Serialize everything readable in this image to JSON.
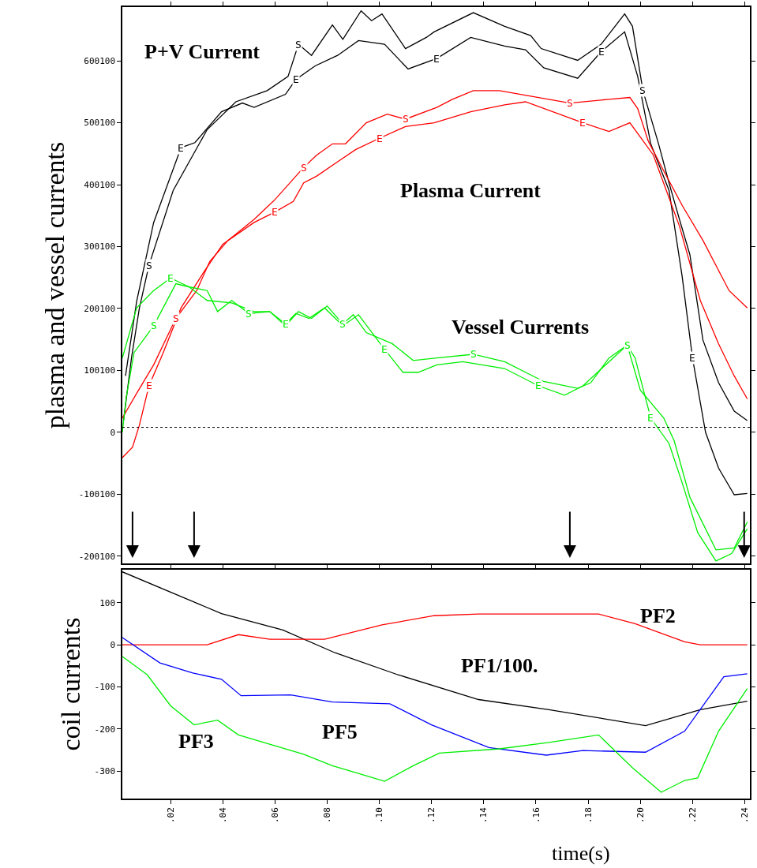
{
  "chart_data": [
    {
      "type": "line",
      "ylabel": "plasma and vessel currents",
      "xlim": [
        0.0015,
        0.242
      ],
      "ylim": [
        -212000,
        687000
      ],
      "xticks": [
        0.02,
        0.04,
        0.06,
        0.08,
        0.1,
        0.12,
        0.14,
        0.16,
        0.18,
        0.2,
        0.22,
        0.24
      ],
      "yticks": [
        600100,
        500100,
        400100,
        300100,
        200100,
        100100,
        0,
        -100100,
        -200100
      ],
      "tick_labels": "y",
      "grid": false,
      "marker": "none",
      "line_style": "solid",
      "ref_lines": [
        {
          "axis": "y",
          "value": 8000,
          "color": "#000000",
          "line_style": "dotted"
        },
        {
          "axis": "x",
          "value": 0.0054,
          "color": "#000000"
        },
        {
          "axis": "x",
          "value": 0.029,
          "color": "#000000"
        },
        {
          "axis": "x",
          "value": 0.173,
          "color": "#000000"
        },
        {
          "axis": "x",
          "value": 0.2398,
          "color": "#000000"
        }
      ],
      "annotations": [
        "P+V Current",
        "Plasma Current",
        "Vessel Currents"
      ],
      "series": [
        {
          "name": "S",
          "color": "#000000",
          "x": [
            0.002,
            0.005,
            0.008,
            0.0117,
            0.021,
            0.034,
            0.045,
            0.057,
            0.065,
            0.069,
            0.074,
            0.082,
            0.086,
            0.093,
            0.097,
            0.101,
            0.11,
            0.118,
            0.121,
            0.136,
            0.148,
            0.158,
            0.162,
            0.176,
            0.185,
            0.194,
            0.197,
            0.201,
            0.207,
            0.211,
            0.215,
            0.219,
            0.224,
            0.23,
            0.236,
            0.241
          ],
          "values": [
            20000,
            120000,
            200000,
            270000,
            391000,
            489000,
            534000,
            552000,
            575000,
            627000,
            609000,
            658000,
            635000,
            681000,
            665000,
            676000,
            620000,
            638000,
            647000,
            678000,
            656000,
            641000,
            620000,
            601000,
            627000,
            676000,
            656000,
            552000,
            466000,
            403000,
            344000,
            287000,
            149000,
            80000,
            34000,
            19000
          ]
        },
        {
          "name": "E",
          "color": "#000000",
          "x": [
            0.0027,
            0.007,
            0.0135,
            0.024,
            0.0293,
            0.0395,
            0.0475,
            0.052,
            0.064,
            0.068,
            0.0754,
            0.084,
            0.092,
            0.102,
            0.111,
            0.122,
            0.135,
            0.148,
            0.156,
            0.163,
            0.176,
            0.185,
            0.194,
            0.199,
            0.204,
            0.211,
            0.216,
            0.22,
            0.225,
            0.23,
            0.236,
            0.241
          ],
          "values": [
            91000,
            212000,
            339000,
            460000,
            468000,
            518000,
            532000,
            525000,
            546000,
            570000,
            592000,
            609000,
            633000,
            627000,
            587000,
            604000,
            638000,
            624000,
            618000,
            589000,
            572000,
            615000,
            647000,
            575000,
            466000,
            391000,
            253000,
            120000,
            0,
            -58000,
            -101000,
            -99000
          ]
        },
        {
          "name": "S",
          "color": "#ff0000",
          "x": [
            0.0015,
            0.007,
            0.0135,
            0.022,
            0.03,
            0.035,
            0.042,
            0.052,
            0.06,
            0.071,
            0.076,
            0.082,
            0.087,
            0.095,
            0.103,
            0.11,
            0.122,
            0.128,
            0.136,
            0.146,
            0.158,
            0.173,
            0.188,
            0.196,
            0.199,
            0.203,
            0.208,
            0.216,
            0.224,
            0.234,
            0.241
          ],
          "values": [
            23000,
            63000,
            109000,
            184000,
            229000,
            276000,
            310000,
            344000,
            376000,
            428000,
            448000,
            466000,
            466000,
            500000,
            514000,
            506000,
            525000,
            538000,
            552000,
            552000,
            543000,
            532000,
            538000,
            541000,
            523000,
            471000,
            430000,
            367000,
            310000,
            229000,
            201000
          ]
        },
        {
          "name": "E",
          "color": "#ff0000",
          "x": [
            0.0015,
            0.0054,
            0.008,
            0.0117,
            0.017,
            0.024,
            0.0326,
            0.04,
            0.052,
            0.06,
            0.067,
            0.071,
            0.076,
            0.084,
            0.091,
            0.1,
            0.11,
            0.121,
            0.135,
            0.148,
            0.156,
            0.178,
            0.188,
            0.196,
            0.2,
            0.205,
            0.215,
            0.223,
            0.23,
            0.236,
            0.241
          ],
          "values": [
            -41000,
            -24000,
            11000,
            75000,
            127000,
            201000,
            258000,
            304000,
            339000,
            356000,
            373000,
            403000,
            414000,
            437000,
            457000,
            475000,
            494000,
            500000,
            518000,
            529000,
            534000,
            500000,
            486000,
            500000,
            477000,
            448000,
            333000,
            213000,
            143000,
            91000,
            54000
          ]
        },
        {
          "name": "S",
          "color": "#00ee00",
          "x": [
            0.0015,
            0.003,
            0.006,
            0.0135,
            0.022,
            0.027,
            0.034,
            0.038,
            0.0434,
            0.05,
            0.058,
            0.064,
            0.069,
            0.074,
            0.08,
            0.086,
            0.09,
            0.095,
            0.105,
            0.113,
            0.122,
            0.136,
            0.148,
            0.163,
            0.176,
            0.181,
            0.188,
            0.195,
            0.2,
            0.209,
            0.213,
            0.219,
            0.229,
            0.236,
            0.241
          ],
          "values": [
            0,
            57000,
            129000,
            172000,
            240000,
            235000,
            229000,
            195000,
            213000,
            192000,
            195000,
            172000,
            195000,
            184000,
            204000,
            175000,
            190000,
            161000,
            143000,
            116000,
            120000,
            126000,
            114000,
            82000,
            71000,
            80000,
            120000,
            141000,
            68000,
            23000,
            -14000,
            -105000,
            -190000,
            -187000,
            -145000
          ]
        },
        {
          "name": "E",
          "color": "#00ee00",
          "x": [
            0.0015,
            0.007,
            0.0135,
            0.02,
            0.027,
            0.034,
            0.0434,
            0.052,
            0.058,
            0.064,
            0.068,
            0.073,
            0.079,
            0.086,
            0.092,
            0.102,
            0.109,
            0.115,
            0.122,
            0.132,
            0.148,
            0.161,
            0.171,
            0.178,
            0.188,
            0.195,
            0.198,
            0.204,
            0.211,
            0.216,
            0.222,
            0.229,
            0.235,
            0.241
          ],
          "values": [
            120000,
            201000,
            229000,
            249000,
            235000,
            213000,
            209000,
            195000,
            195000,
            175000,
            192000,
            184000,
            201000,
            172000,
            190000,
            134000,
            97000,
            97000,
            109000,
            114000,
            103000,
            75000,
            60000,
            75000,
            114000,
            141000,
            120000,
            23000,
            -18000,
            -81000,
            -162000,
            -208000,
            -196000,
            -156000
          ]
        }
      ]
    },
    {
      "type": "line",
      "ylabel": "coil currents",
      "xlabel": "time(s)",
      "xlim": [
        0.0015,
        0.242
      ],
      "ylim": [
        -365,
        178
      ],
      "xticks": [
        {
          "value": 0.02,
          "label": ".02"
        },
        {
          "value": 0.04,
          "label": ".04"
        },
        {
          "value": 0.06,
          "label": ".06"
        },
        {
          "value": 0.08,
          "label": ".08"
        },
        {
          "value": 0.1,
          "label": ".10"
        },
        {
          "value": 0.12,
          "label": ".12"
        },
        {
          "value": 0.14,
          "label": ".14"
        },
        {
          "value": 0.16,
          "label": ".16"
        },
        {
          "value": 0.18,
          "label": ".18"
        },
        {
          "value": 0.2,
          "label": ".20"
        },
        {
          "value": 0.22,
          "label": ".22"
        },
        {
          "value": 0.24,
          "label": ".24"
        }
      ],
      "yticks": [
        100,
        0,
        -100,
        -200,
        -300
      ],
      "grid": false,
      "marker": "none",
      "line_style": "solid",
      "annotations": [
        "PF2",
        "PF1/100.",
        "PF5",
        "PF3"
      ],
      "series": [
        {
          "color": "#000000",
          "x": [
            0.0015,
            0.0395,
            0.063,
            0.083,
            0.107,
            0.138,
            0.165,
            0.202,
            0.223,
            0.241
          ],
          "values": [
            173,
            74,
            35,
            -19,
            -71,
            -130,
            -154,
            -192,
            -154,
            -134
          ]
        },
        {
          "color": "#ff0000",
          "x": [
            0.0015,
            0.034,
            0.046,
            0.058,
            0.079,
            0.101,
            0.121,
            0.138,
            0.184,
            0.198,
            0.217,
            0.223,
            0.241
          ],
          "values": [
            0,
            0,
            24,
            13,
            13,
            47,
            69,
            73,
            73,
            50,
            7,
            0,
            0
          ]
        },
        {
          "color": "#0000ff",
          "x": [
            0.0015,
            0.0159,
            0.0285,
            0.0395,
            0.047,
            0.066,
            0.082,
            0.104,
            0.12,
            0.142,
            0.164,
            0.178,
            0.202,
            0.217,
            0.232,
            0.241
          ],
          "values": [
            17,
            -43,
            -67,
            -82,
            -121,
            -119,
            -136,
            -140,
            -190,
            -244,
            -262,
            -251,
            -255,
            -205,
            -76,
            -69
          ]
        },
        {
          "color": "#00ee00",
          "x": [
            0.0015,
            0.011,
            0.02,
            0.029,
            0.038,
            0.046,
            0.06,
            0.071,
            0.082,
            0.095,
            0.102,
            0.113,
            0.123,
            0.146,
            0.165,
            0.184,
            0.197,
            0.208,
            0.217,
            0.222,
            0.23,
            0.241
          ],
          "values": [
            -28,
            -71,
            -145,
            -190,
            -179,
            -214,
            -240,
            -260,
            -287,
            -311,
            -324,
            -287,
            -257,
            -247,
            -232,
            -214,
            -292,
            -350,
            -322,
            -316,
            -205,
            -104
          ]
        }
      ]
    }
  ]
}
